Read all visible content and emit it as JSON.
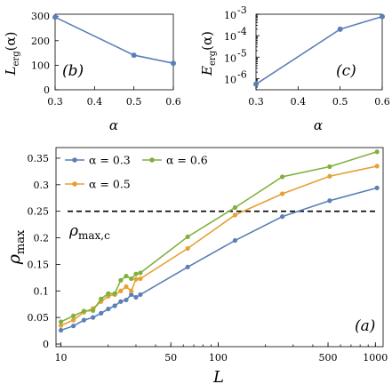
{
  "chart_data": [
    {
      "panel": "(b)",
      "type": "line",
      "xlabel": "α",
      "ylabel_main": "L",
      "ylabel_sub": "erg",
      "ylabel_arg": "(α)",
      "xlim": [
        0.3,
        0.6
      ],
      "ylim": [
        0,
        300
      ],
      "xticks": [
        "0.3",
        "0.4",
        "0.5",
        "0.6"
      ],
      "yticks": [
        "0",
        "100",
        "200",
        "300"
      ],
      "series": [
        {
          "color": "#5b7fb8",
          "x": [
            0.3,
            0.5,
            0.6
          ],
          "y": [
            296,
            141,
            108
          ]
        }
      ]
    },
    {
      "panel": "(c)",
      "type": "line",
      "log_y": true,
      "xlabel": "α",
      "ylabel_main": "E",
      "ylabel_sub": "erg",
      "ylabel_arg": "(α)",
      "xlim": [
        0.3,
        0.6
      ],
      "ylim": [
        3e-07,
        0.001
      ],
      "xticks": [
        "0.3",
        "0.4",
        "0.5",
        "0.6"
      ],
      "yticks": [
        {
          "base": "10",
          "exp": "-3"
        },
        {
          "base": "10",
          "exp": "-4"
        },
        {
          "base": "10",
          "exp": "-5"
        },
        {
          "base": "10",
          "exp": "-6"
        }
      ],
      "series": [
        {
          "color": "#5b7fb8",
          "x": [
            0.3,
            0.5,
            0.6
          ],
          "y": [
            5.5e-07,
            0.0002,
            0.00078
          ]
        }
      ]
    },
    {
      "panel": "(a)",
      "type": "line",
      "log_x": true,
      "xlabel": "L",
      "ylabel_main": "ρ",
      "ylabel_sub": "max",
      "xlim": [
        9.3,
        1120
      ],
      "ylim": [
        -0.005,
        0.37
      ],
      "xticks": [
        "10",
        "50",
        "100",
        "500",
        "1000"
      ],
      "yticks": [
        "0",
        "0.05",
        "0.1",
        "0.15",
        "0.2",
        "0.25",
        "0.3",
        "0.35"
      ],
      "threshold": {
        "value": 0.25,
        "label_main": "ρ",
        "label_sub": "max,c"
      },
      "legend": [
        {
          "label": "α = 0.3",
          "color": "#5b7fb8"
        },
        {
          "label": "α = 0.6",
          "color": "#7fb13c"
        },
        {
          "label": "α = 0.5",
          "color": "#e6a033"
        }
      ],
      "series": [
        {
          "name": "α = 0.3",
          "color": "#5b7fb8",
          "x": [
            10,
            12,
            14,
            16,
            18,
            20,
            22,
            24,
            26,
            28,
            30,
            32,
            64,
            128,
            256,
            512,
            1024
          ],
          "y": [
            0.026,
            0.034,
            0.045,
            0.05,
            0.058,
            0.066,
            0.072,
            0.08,
            0.083,
            0.093,
            0.088,
            0.093,
            0.145,
            0.195,
            0.24,
            0.27,
            0.294
          ]
        },
        {
          "name": "α = 0.5",
          "color": "#e6a033",
          "x": [
            10,
            12,
            14,
            16,
            18,
            20,
            22,
            24,
            26,
            28,
            30,
            32,
            64,
            128,
            256,
            512,
            1024
          ],
          "y": [
            0.035,
            0.045,
            0.06,
            0.067,
            0.08,
            0.09,
            0.093,
            0.1,
            0.108,
            0.1,
            0.122,
            0.123,
            0.18,
            0.243,
            0.283,
            0.316,
            0.335
          ]
        },
        {
          "name": "α = 0.6",
          "color": "#7fb13c",
          "x": [
            10,
            12,
            14,
            16,
            18,
            20,
            22,
            24,
            26,
            28,
            30,
            32,
            64,
            128,
            256,
            512,
            1024
          ],
          "y": [
            0.042,
            0.053,
            0.062,
            0.063,
            0.085,
            0.095,
            0.095,
            0.12,
            0.128,
            0.123,
            0.132,
            0.134,
            0.202,
            0.257,
            0.315,
            0.334,
            0.362
          ]
        }
      ]
    }
  ]
}
